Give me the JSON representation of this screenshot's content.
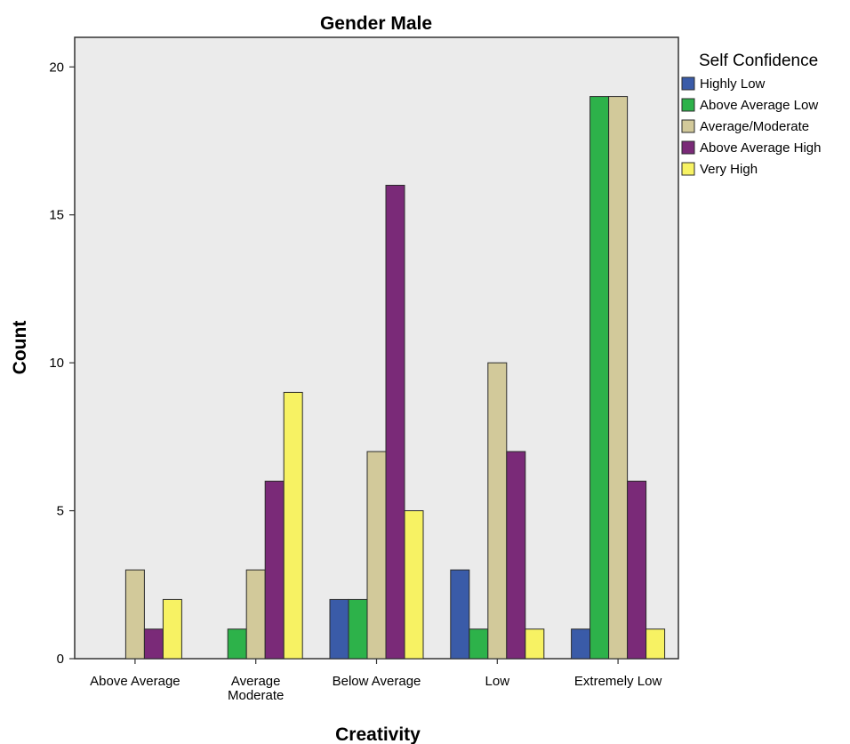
{
  "chart_data": {
    "type": "bar",
    "title": "Gender Male",
    "xlabel": "Creativity",
    "ylabel": "Count",
    "ylim": [
      0,
      21
    ],
    "yticks": [
      0,
      5,
      10,
      15,
      20
    ],
    "categories": [
      [
        "Above Average"
      ],
      [
        "Average",
        "Moderate"
      ],
      [
        "Below Average"
      ],
      [
        "Low"
      ],
      [
        "Extremely Low"
      ]
    ],
    "legend_title": "Self Confidence",
    "legend_position": "right",
    "grid": false,
    "plot_background": "#ebebeb",
    "series": [
      {
        "name": "Highly Low",
        "color": "#3a5ba8",
        "values": [
          0,
          0,
          2,
          3,
          1
        ]
      },
      {
        "name": "Above Average Low",
        "color": "#2db24a",
        "values": [
          0,
          1,
          2,
          1,
          19
        ]
      },
      {
        "name": "Average/Moderate",
        "color": "#d2c99a",
        "values": [
          3,
          3,
          7,
          10,
          19
        ]
      },
      {
        "name": "Above Average High",
        "color": "#7a2a78",
        "values": [
          1,
          6,
          16,
          7,
          6
        ]
      },
      {
        "name": "Very High",
        "color": "#f7f263",
        "values": [
          2,
          9,
          5,
          1,
          1
        ]
      }
    ]
  }
}
